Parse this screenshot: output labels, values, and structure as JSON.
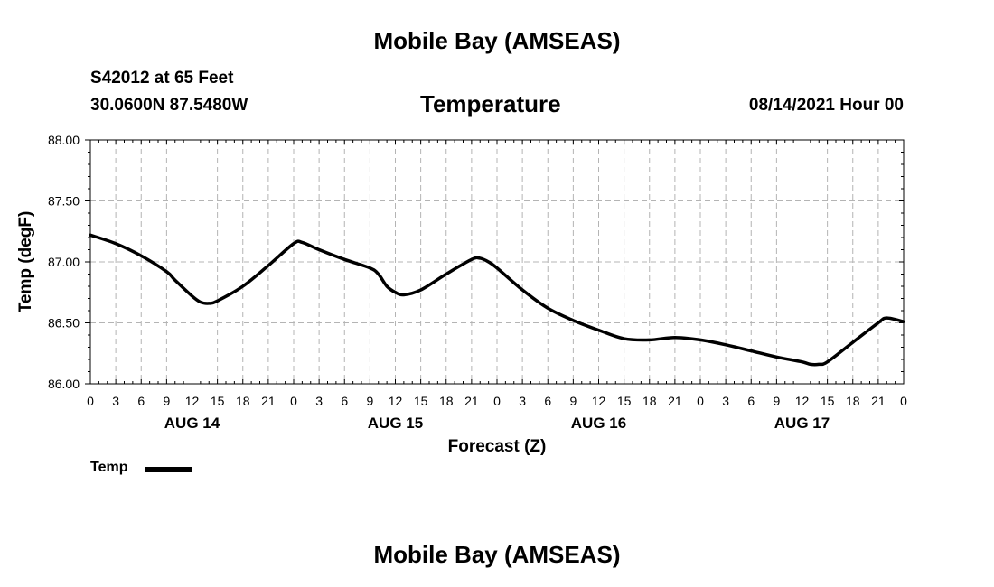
{
  "header": {
    "top_title": "Mobile Bay (AMSEAS)",
    "station": "S42012 at 65 Feet",
    "coords": "30.0600N  87.5480W",
    "variable_title": "Temperature",
    "datetime": "08/14/2021 Hour 00"
  },
  "footer": {
    "bottom_title": "Mobile Bay (AMSEAS)"
  },
  "legend": {
    "label": "Temp",
    "color": "#000000"
  },
  "chart_data": {
    "type": "line",
    "title": "Temperature",
    "xlabel": "Forecast (Z)",
    "ylabel": "Temp (degF)",
    "xlim": [
      0,
      96
    ],
    "ylim": [
      86.0,
      88.0
    ],
    "grid": true,
    "yticks": [
      86.0,
      86.5,
      87.0,
      87.5,
      88.0
    ],
    "ytick_labels": [
      "86.00",
      "86.50",
      "87.00",
      "87.50",
      "88.00"
    ],
    "xtick_hours": [
      0,
      3,
      6,
      9,
      12,
      15,
      18,
      21,
      24,
      27,
      30,
      33,
      36,
      39,
      42,
      45,
      48,
      51,
      54,
      57,
      60,
      63,
      66,
      69,
      72,
      75,
      78,
      81,
      84,
      87,
      90,
      93,
      96
    ],
    "xtick_labels": [
      "0",
      "3",
      "6",
      "9",
      "12",
      "15",
      "18",
      "21",
      "0",
      "3",
      "6",
      "9",
      "12",
      "15",
      "18",
      "21",
      "0",
      "3",
      "6",
      "9",
      "12",
      "15",
      "18",
      "21",
      "0",
      "3",
      "6",
      "9",
      "12",
      "15",
      "18",
      "21",
      "0"
    ],
    "day_labels": [
      {
        "hour": 12,
        "label": "AUG 14"
      },
      {
        "hour": 36,
        "label": "AUG 15"
      },
      {
        "hour": 60,
        "label": "AUG 16"
      },
      {
        "hour": 84,
        "label": "AUG 17"
      }
    ],
    "series": [
      {
        "name": "Temp",
        "color": "#000000",
        "x": [
          0,
          3,
          6,
          9,
          10,
          12,
          13,
          14,
          15,
          18,
          21,
          24,
          25,
          27,
          30,
          33,
          34,
          35,
          36,
          37,
          39,
          42,
          45,
          46,
          47,
          48,
          51,
          54,
          57,
          60,
          63,
          66,
          69,
          72,
          75,
          78,
          81,
          84,
          85,
          86,
          87,
          90,
          93,
          94,
          96
        ],
        "y": [
          87.22,
          87.15,
          87.05,
          86.92,
          86.85,
          86.72,
          86.67,
          86.66,
          86.68,
          86.8,
          86.97,
          87.15,
          87.16,
          87.1,
          87.02,
          86.95,
          86.9,
          86.8,
          86.75,
          86.73,
          86.77,
          86.9,
          87.02,
          87.03,
          87.0,
          86.95,
          86.77,
          86.62,
          86.52,
          86.44,
          86.37,
          86.36,
          86.38,
          86.36,
          86.32,
          86.27,
          86.22,
          86.18,
          86.16,
          86.16,
          86.18,
          86.34,
          86.5,
          86.54,
          86.51
        ]
      }
    ]
  }
}
